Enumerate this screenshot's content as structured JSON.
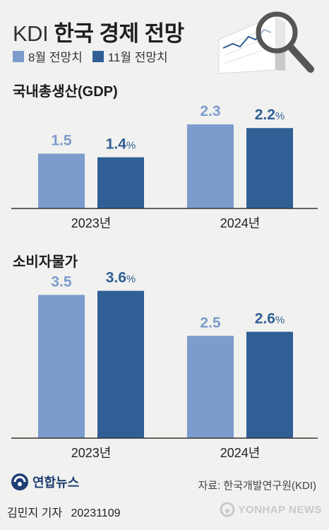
{
  "header": {
    "title_prefix": "KDI",
    "title_main": "한국 경제 전망"
  },
  "legend": [
    {
      "label": "8월 전망치",
      "color": "#7b9ccc"
    },
    {
      "label": "11월 전망치",
      "color": "#2f5f95"
    }
  ],
  "colors": {
    "august": "#7b9ccc",
    "november": "#2f5f95",
    "august_label": "#7b9ccc",
    "november_label": "#2f5f95",
    "axis": "#333333"
  },
  "chart_data": [
    {
      "type": "bar",
      "title": "국내총생산(GDP)",
      "categories": [
        "2023년",
        "2024년"
      ],
      "series": [
        {
          "name": "8월 전망치",
          "values": [
            1.5,
            2.3
          ]
        },
        {
          "name": "11월 전망치",
          "values": [
            1.4,
            2.2
          ]
        }
      ],
      "value_labels": {
        "8월 전망치": [
          "1.5",
          "2.3"
        ],
        "11월 전망치": [
          "1.4%",
          "2.2%"
        ]
      },
      "unit": "%",
      "ylim": [
        0,
        2.9
      ],
      "grid": false,
      "legend": "top-left"
    },
    {
      "type": "bar",
      "title": "소비자물가",
      "categories": [
        "2023년",
        "2024년"
      ],
      "series": [
        {
          "name": "8월 전망치",
          "values": [
            3.5,
            2.5
          ]
        },
        {
          "name": "11월 전망치",
          "values": [
            3.6,
            2.6
          ]
        }
      ],
      "value_labels": {
        "8월 전망치": [
          "3.5",
          "2.5"
        ],
        "11월 전망치": [
          "3.6%",
          "2.6%"
        ]
      },
      "unit": "%",
      "ylim": [
        0,
        3.8
      ],
      "grid": false,
      "legend": "top-left"
    }
  ],
  "footer": {
    "logo_text": "연합뉴스",
    "source": "자료: 한국개발연구원(KDI)",
    "reporter": "김민지 기자",
    "date": "20231109",
    "watermark": "YONHAP NEWS"
  },
  "icons": {
    "decoration": "magnifier-chart-icon",
    "logo": "yonhap-logo-icon",
    "watermark": "yonhap-watermark-icon"
  }
}
